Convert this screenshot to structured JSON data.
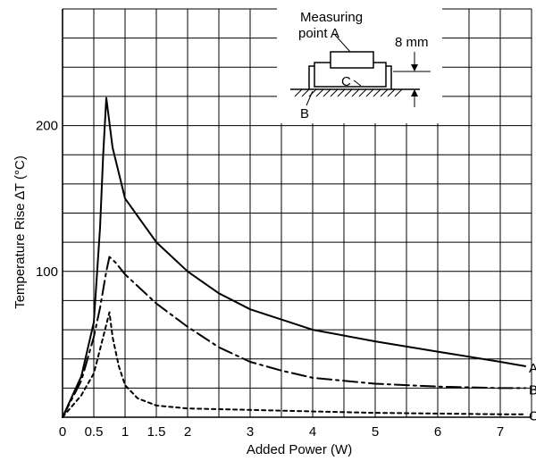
{
  "chart_data": {
    "type": "line",
    "title": "",
    "xlabel": "Added Power  (W)",
    "ylabel": "Temperature Rise ∆T (°C)",
    "xlim": [
      0,
      7.5
    ],
    "ylim": [
      0,
      280
    ],
    "grid": true,
    "x_ticks": [
      {
        "value": 0,
        "label": "0"
      },
      {
        "value": 0.5,
        "label": "0.5"
      },
      {
        "value": 1,
        "label": "1"
      },
      {
        "value": 1.5,
        "label": "1.5"
      },
      {
        "value": 2,
        "label": "2"
      },
      {
        "value": 3,
        "label": "3"
      },
      {
        "value": 4,
        "label": "4"
      },
      {
        "value": 5,
        "label": "5"
      },
      {
        "value": 6,
        "label": "6"
      },
      {
        "value": 7,
        "label": "7"
      }
    ],
    "y_ticks": [
      {
        "value": 100,
        "label": "100"
      },
      {
        "value": 200,
        "label": "200"
      }
    ],
    "series": [
      {
        "name": "A",
        "style": "solid",
        "points": [
          [
            0,
            0
          ],
          [
            0.3,
            28
          ],
          [
            0.5,
            65
          ],
          [
            0.6,
            130
          ],
          [
            0.65,
            180
          ],
          [
            0.7,
            219
          ],
          [
            0.8,
            185
          ],
          [
            1,
            150
          ],
          [
            1.5,
            120
          ],
          [
            2,
            100
          ],
          [
            2.5,
            85
          ],
          [
            3,
            74
          ],
          [
            4,
            60
          ],
          [
            5,
            52
          ],
          [
            6,
            45
          ],
          [
            7,
            38
          ],
          [
            7.4,
            35
          ]
        ]
      },
      {
        "name": "B",
        "style": "dashdot",
        "points": [
          [
            0,
            0
          ],
          [
            0.3,
            25
          ],
          [
            0.5,
            55
          ],
          [
            0.6,
            75
          ],
          [
            0.7,
            100
          ],
          [
            0.75,
            110
          ],
          [
            0.85,
            106
          ],
          [
            1,
            98
          ],
          [
            1.5,
            78
          ],
          [
            2,
            62
          ],
          [
            2.5,
            48
          ],
          [
            3,
            38
          ],
          [
            3.5,
            32
          ],
          [
            4,
            27
          ],
          [
            5,
            23
          ],
          [
            6,
            21
          ],
          [
            7,
            20
          ],
          [
            7.4,
            20
          ]
        ]
      },
      {
        "name": "C",
        "style": "dotted",
        "points": [
          [
            0,
            0
          ],
          [
            0.3,
            15
          ],
          [
            0.5,
            30
          ],
          [
            0.65,
            55
          ],
          [
            0.75,
            72
          ],
          [
            0.8,
            55
          ],
          [
            0.9,
            35
          ],
          [
            1,
            22
          ],
          [
            1.2,
            13
          ],
          [
            1.5,
            8
          ],
          [
            2,
            6
          ],
          [
            3,
            5
          ],
          [
            4,
            4
          ],
          [
            5,
            3
          ],
          [
            6,
            2.5
          ],
          [
            7,
            2
          ],
          [
            7.4,
            2
          ]
        ]
      }
    ]
  },
  "inset": {
    "measuring_label_line1": "Measuring",
    "measuring_label_line2": "point A",
    "dimension_label": "8 mm",
    "point_b": "B",
    "point_c": "C"
  },
  "colors": {
    "line": "#000000",
    "grid": "#000000",
    "background": "#ffffff"
  }
}
